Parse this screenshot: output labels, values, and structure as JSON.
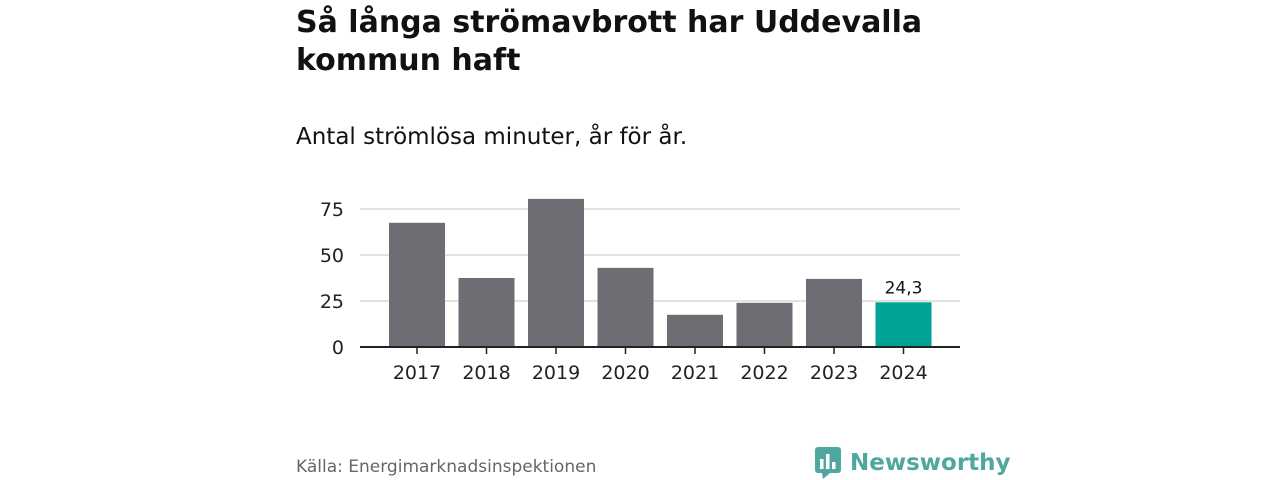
{
  "header": {
    "title": "Så långa strömavbrott har Uddevalla kommun haft",
    "subtitle": "Antal strömlösa minuter, år för år."
  },
  "footer": {
    "source": "Källa: Energimarknadsinspektionen",
    "brand": "Newsworthy",
    "brand_icon": "bar-chart-bubble-icon"
  },
  "colors": {
    "bar": "#6e6d73",
    "highlight": "#00a396",
    "grid": "#d9d9d9",
    "axis": "#222222",
    "brand": "#4fa7a0"
  },
  "chart_data": {
    "type": "bar",
    "title": "Så långa strömavbrott har Uddevalla kommun haft",
    "subtitle": "Antal strömlösa minuter, år för år.",
    "xlabel": "",
    "ylabel": "",
    "categories": [
      "2017",
      "2018",
      "2019",
      "2020",
      "2021",
      "2022",
      "2023",
      "2024"
    ],
    "values": [
      67.5,
      37.5,
      80.5,
      43,
      17.5,
      24,
      37,
      24.3
    ],
    "highlight_index": 7,
    "data_labels": [
      {
        "index": 7,
        "text": "24,3"
      }
    ],
    "yticks": [
      0,
      25,
      50,
      75
    ],
    "ylim": [
      0,
      82
    ],
    "grid": true
  }
}
